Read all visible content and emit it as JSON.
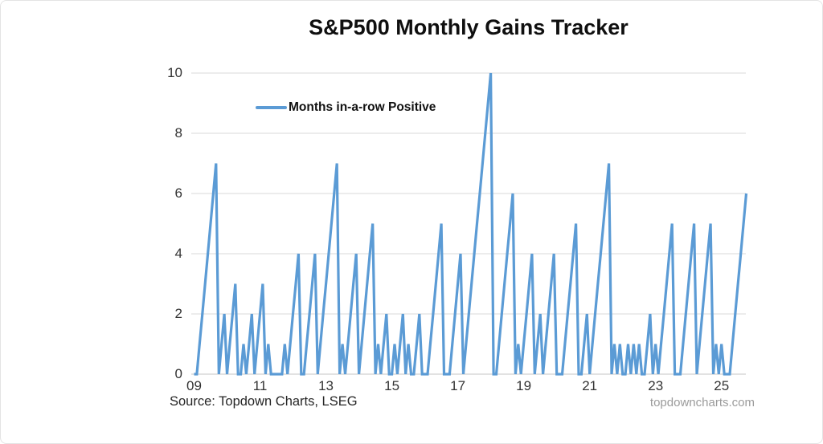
{
  "title": "S&P500 Monthly Gains Tracker",
  "legend": {
    "label": "Months in-a-row Positive"
  },
  "source_text": "Source: Topdown Charts, LSEG",
  "watermark": "topdowncharts.com",
  "colors": {
    "line": "#5B9BD5",
    "grid": "#D9D9D9",
    "zero_axis": "#C6C6C6",
    "title_text": "#0F0F0F",
    "tick_text": "#333333",
    "source_text": "#262626",
    "watermark_text": "#9B9B9B",
    "background": "#FFFFFF"
  },
  "chart_data": {
    "type": "line",
    "title": "S&P500 Monthly Gains Tracker",
    "xlabel": "",
    "ylabel": "",
    "x_start_month": "2009-01",
    "x_end_month": "2025-10",
    "x_frequency": "monthly",
    "x_tick_labels": [
      "09",
      "11",
      "13",
      "15",
      "17",
      "19",
      "21",
      "23",
      "25"
    ],
    "x_tick_step_months": 24,
    "y_ticks": [
      0,
      2,
      4,
      6,
      8,
      10
    ],
    "ylim": [
      0,
      10
    ],
    "grid": "horizontal",
    "legend_position": "inside-top-left",
    "series": [
      {
        "name": "Months in-a-row Positive",
        "color": "#5B9BD5",
        "values": [
          0,
          0,
          1,
          2,
          3,
          4,
          5,
          6,
          7,
          0,
          1,
          2,
          0,
          1,
          2,
          3,
          0,
          0,
          1,
          0,
          1,
          2,
          0,
          1,
          2,
          3,
          0,
          1,
          0,
          0,
          0,
          0,
          0,
          1,
          0,
          1,
          2,
          3,
          4,
          0,
          0,
          1,
          2,
          3,
          4,
          0,
          1,
          2,
          3,
          4,
          5,
          6,
          7,
          0,
          1,
          0,
          1,
          2,
          3,
          4,
          0,
          1,
          2,
          3,
          4,
          5,
          0,
          1,
          0,
          1,
          2,
          0,
          0,
          1,
          0,
          1,
          2,
          0,
          1,
          0,
          0,
          1,
          2,
          0,
          0,
          0,
          1,
          2,
          3,
          4,
          5,
          0,
          0,
          0,
          1,
          2,
          3,
          4,
          0,
          1,
          2,
          3,
          4,
          5,
          6,
          7,
          8,
          9,
          10,
          0,
          0,
          1,
          2,
          3,
          4,
          5,
          6,
          0,
          1,
          0,
          1,
          2,
          3,
          4,
          0,
          1,
          2,
          0,
          1,
          2,
          3,
          4,
          0,
          0,
          0,
          1,
          2,
          3,
          4,
          5,
          0,
          0,
          1,
          2,
          0,
          1,
          2,
          3,
          4,
          5,
          6,
          7,
          0,
          1,
          0,
          1,
          0,
          0,
          1,
          0,
          1,
          0,
          1,
          0,
          0,
          1,
          2,
          0,
          1,
          0,
          1,
          2,
          3,
          4,
          5,
          0,
          0,
          0,
          1,
          2,
          3,
          4,
          5,
          0,
          1,
          2,
          3,
          4,
          5,
          0,
          1,
          0,
          1,
          0,
          0,
          0,
          1,
          2,
          3,
          4,
          5,
          6
        ]
      }
    ]
  }
}
